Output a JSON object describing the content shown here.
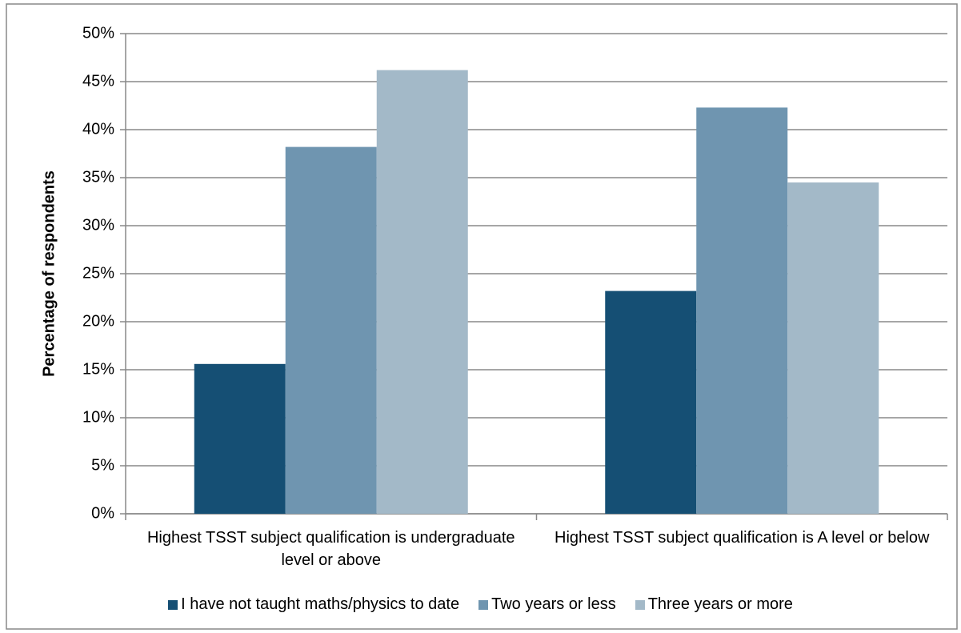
{
  "chart_data": {
    "type": "bar",
    "y_label": "Percentage of respondents",
    "categories": [
      "Highest TSST subject qualification is undergraduate level or above",
      "Highest TSST subject qualification is A level or below"
    ],
    "series": [
      {
        "name": "I have not taught maths/physics to date",
        "color": "#154f74",
        "values": [
          15.6,
          23.2
        ]
      },
      {
        "name": "Two years or less",
        "color": "#6f95b0",
        "values": [
          38.2,
          42.3
        ]
      },
      {
        "name": "Three years or more",
        "color": "#a3b9c8",
        "values": [
          46.2,
          34.5
        ]
      }
    ],
    "ylim": [
      0,
      50
    ],
    "yticks": [
      {
        "value": 0,
        "label": "0%"
      },
      {
        "value": 5,
        "label": "5%"
      },
      {
        "value": 10,
        "label": "10%"
      },
      {
        "value": 15,
        "label": "15%"
      },
      {
        "value": 20,
        "label": "20%"
      },
      {
        "value": 25,
        "label": "25%"
      },
      {
        "value": 30,
        "label": "30%"
      },
      {
        "value": 35,
        "label": "35%"
      },
      {
        "value": 40,
        "label": "40%"
      },
      {
        "value": 45,
        "label": "45%"
      },
      {
        "value": 50,
        "label": "50%"
      }
    ],
    "grid": true,
    "legend": "bottom"
  }
}
